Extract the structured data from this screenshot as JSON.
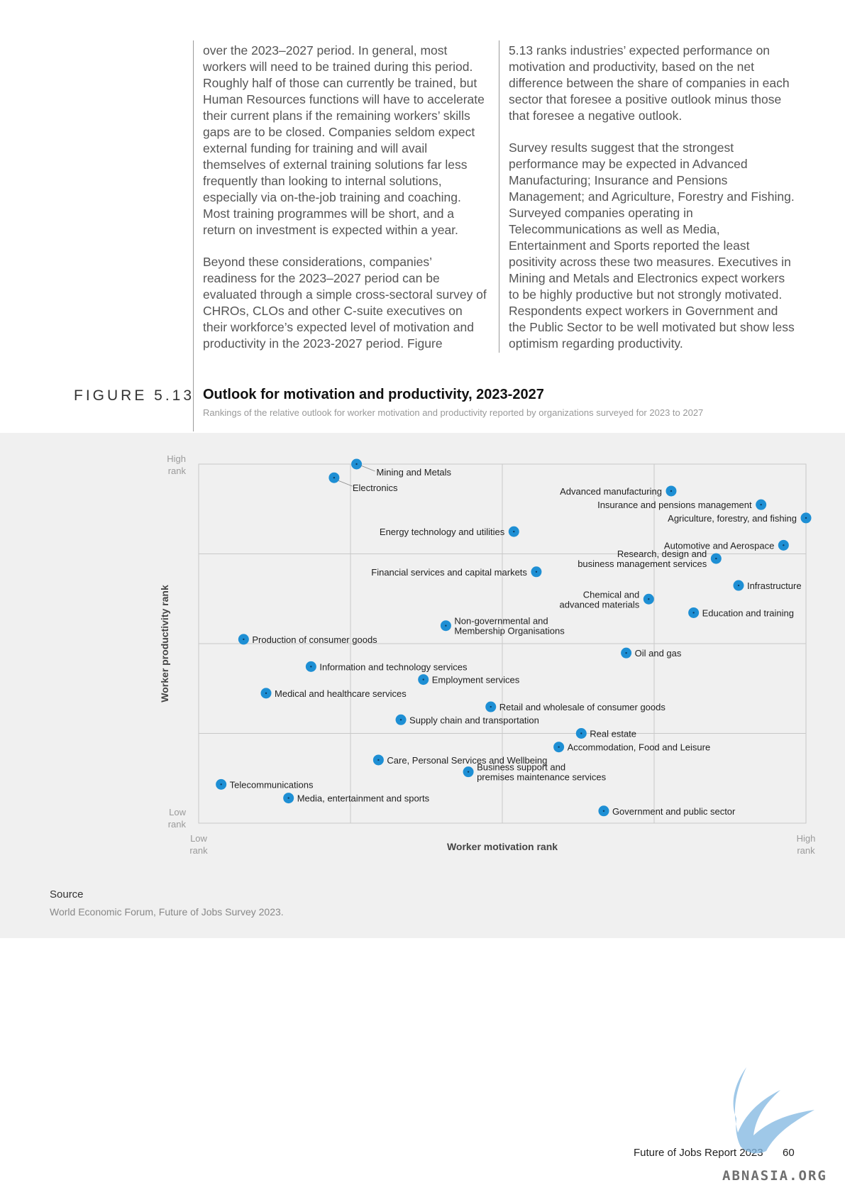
{
  "body_text": {
    "left_paragraphs": [
      "over the 2023–2027 period. In general, most workers will need to be trained during this period. Roughly half of those can currently be trained, but Human Resources functions will have to accelerate their current plans if the remaining workers’ skills gaps are to be closed. Companies seldom expect external funding for training and will avail themselves of external training solutions far less frequently than looking to internal solutions, especially via on-the-job training and coaching. Most training programmes will be short, and a return on investment is expected within a year.",
      "Beyond these considerations, companies’ readiness for the 2023–2027 period can be evaluated through a simple cross-sectoral survey of CHROs, CLOs and other C-suite executives on their workforce’s expected level of motivation and productivity in the 2023-2027 period. Figure"
    ],
    "right_paragraphs": [
      "5.13 ranks industries’ expected performance on motivation and productivity, based on the net difference between the share of companies in each sector that foresee a positive outlook minus those that foresee a negative outlook.",
      "Survey results suggest that the strongest performance may be expected in Advanced Manufacturing; Insurance and Pensions Management; and Agriculture, Forestry and Fishing. Surveyed companies operating in Telecommunications as well as Media, Entertainment and Sports reported the least positivity across these two measures. Executives in Mining and Metals and Electronics expect workers to be highly productive but not strongly motivated. Respondents expect workers in Government and the Public Sector to be well motivated but show less optimism regarding productivity."
    ]
  },
  "figure": {
    "label": "FIGURE 5.13",
    "title": "Outlook for motivation and productivity, 2023-2027",
    "subtitle": "Rankings of the relative outlook for worker motivation and productivity reported by organizations surveyed for 2023 to 2027"
  },
  "chart_data": {
    "type": "scatter",
    "xlabel": "Worker motivation rank",
    "ylabel": "Worker productivity rank",
    "x_ticks": {
      "low": "Low\nrank",
      "high": "High\nrank"
    },
    "y_ticks": {
      "low": "Low\nrank",
      "high": "High\nrank"
    },
    "xlim": [
      0,
      100
    ],
    "ylim": [
      0,
      100
    ],
    "grid": true,
    "point_color": "#1e8fd4",
    "points": [
      {
        "name": "Mining and Metals",
        "x": 26,
        "y": 100,
        "label_pos": "right"
      },
      {
        "name": "Electronics",
        "x": 22.3,
        "y": 96.2,
        "label_pos": "below-right"
      },
      {
        "name": "Advanced manufacturing",
        "x": 77.8,
        "y": 92.5,
        "label_pos": "left"
      },
      {
        "name": "Insurance and pensions management",
        "x": 92.6,
        "y": 88.7,
        "label_pos": "left"
      },
      {
        "name": "Agriculture, forestry, and fishing",
        "x": 100,
        "y": 85,
        "label_pos": "left"
      },
      {
        "name": "Energy technology and utilities",
        "x": 51.9,
        "y": 81.2,
        "label_pos": "left"
      },
      {
        "name": "Automotive and Aerospace",
        "x": 96.3,
        "y": 77.4,
        "label_pos": "left"
      },
      {
        "name": "Research, design and\nbusiness management services",
        "x": 85.2,
        "y": 73.7,
        "label_pos": "left"
      },
      {
        "name": "Financial services and capital markets",
        "x": 55.6,
        "y": 70,
        "label_pos": "left"
      },
      {
        "name": "Infrastructure",
        "x": 88.9,
        "y": 66.2,
        "label_pos": "right"
      },
      {
        "name": "Chemical and\nadvanced materials",
        "x": 74.1,
        "y": 62.4,
        "label_pos": "left"
      },
      {
        "name": "Education and training",
        "x": 81.5,
        "y": 58.6,
        "label_pos": "right"
      },
      {
        "name": "Non-governmental and\nMembership Organisations",
        "x": 40.7,
        "y": 55,
        "label_pos": "right"
      },
      {
        "name": "Production of consumer goods",
        "x": 7.4,
        "y": 51.2,
        "label_pos": "right"
      },
      {
        "name": "Oil and gas",
        "x": 70.4,
        "y": 47.4,
        "label_pos": "right"
      },
      {
        "name": "Information and technology services",
        "x": 18.5,
        "y": 43.6,
        "label_pos": "right"
      },
      {
        "name": "Employment services",
        "x": 37,
        "y": 40,
        "label_pos": "right"
      },
      {
        "name": "Medical and healthcare services",
        "x": 11.1,
        "y": 36.2,
        "label_pos": "right"
      },
      {
        "name": "Retail and wholesale of consumer goods",
        "x": 48.1,
        "y": 32.4,
        "label_pos": "right"
      },
      {
        "name": "Supply chain and transportation",
        "x": 33.3,
        "y": 28.8,
        "label_pos": "right"
      },
      {
        "name": "Real estate",
        "x": 63,
        "y": 25,
        "label_pos": "right"
      },
      {
        "name": "Accommodation, Food and Leisure",
        "x": 59.3,
        "y": 21.2,
        "label_pos": "right"
      },
      {
        "name": "Care, Personal Services and Wellbeing",
        "x": 29.6,
        "y": 17.6,
        "label_pos": "right"
      },
      {
        "name": "Business support and\npremises maintenance services",
        "x": 44.4,
        "y": 14.3,
        "label_pos": "right"
      },
      {
        "name": "Telecommunications",
        "x": 3.7,
        "y": 10.8,
        "label_pos": "right"
      },
      {
        "name": "Media, entertainment and sports",
        "x": 14.8,
        "y": 7,
        "label_pos": "right"
      },
      {
        "name": "Government and public sector",
        "x": 66.7,
        "y": 3.4,
        "label_pos": "right"
      }
    ]
  },
  "source": {
    "heading": "Source",
    "text": "World Economic Forum, Future of Jobs Survey 2023."
  },
  "footer": {
    "report": "Future of Jobs Report 2023",
    "page": "60"
  },
  "watermark": {
    "text": "ABNASIA.ORG"
  }
}
